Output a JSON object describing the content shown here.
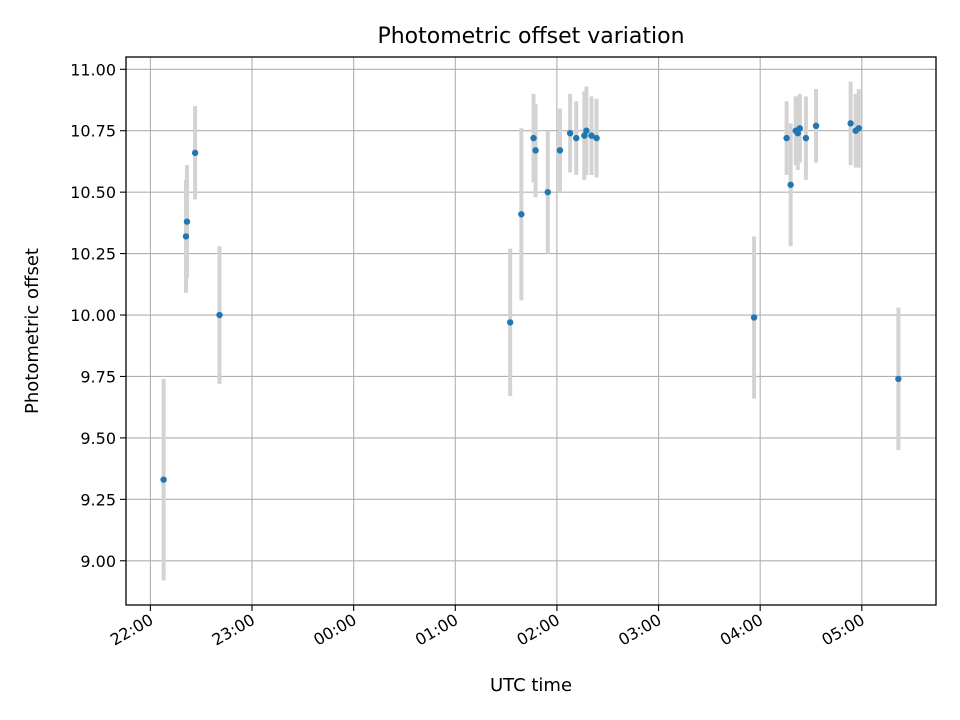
{
  "chart_data": {
    "type": "scatter",
    "title": "Photometric offset variation",
    "xlabel": "UTC time",
    "ylabel": "Photometric offset",
    "grid": true,
    "xlim_hours": [
      21.76,
      29.73
    ],
    "ylim": [
      8.82,
      11.05
    ],
    "x_ticks": [
      {
        "hours": 22,
        "label": "22:00"
      },
      {
        "hours": 23,
        "label": "23:00"
      },
      {
        "hours": 24,
        "label": "00:00"
      },
      {
        "hours": 25,
        "label": "01:00"
      },
      {
        "hours": 26,
        "label": "02:00"
      },
      {
        "hours": 27,
        "label": "03:00"
      },
      {
        "hours": 28,
        "label": "04:00"
      },
      {
        "hours": 29,
        "label": "05:00"
      }
    ],
    "y_ticks": [
      {
        "value": 9.0,
        "label": "9.00"
      },
      {
        "value": 9.25,
        "label": "9.25"
      },
      {
        "value": 9.5,
        "label": "9.50"
      },
      {
        "value": 9.75,
        "label": "9.75"
      },
      {
        "value": 10.0,
        "label": "10.00"
      },
      {
        "value": 10.25,
        "label": "10.25"
      },
      {
        "value": 10.5,
        "label": "10.50"
      },
      {
        "value": 10.75,
        "label": "10.75"
      },
      {
        "value": 11.0,
        "label": "11.00"
      }
    ],
    "colors": {
      "points": "#1f77b4",
      "errorbars": "#d3d3d3",
      "grid": "#b0b0b0",
      "frame": "#000000"
    },
    "series": [
      {
        "name": "offset",
        "points": [
          {
            "t": 22.13,
            "y": 9.33,
            "err": 0.41
          },
          {
            "t": 22.35,
            "y": 10.32,
            "err": 0.23
          },
          {
            "t": 22.36,
            "y": 10.38,
            "err": 0.23
          },
          {
            "t": 22.44,
            "y": 10.66,
            "err": 0.19
          },
          {
            "t": 22.68,
            "y": 10.0,
            "err": 0.28
          },
          {
            "t": 25.54,
            "y": 9.97,
            "err": 0.3
          },
          {
            "t": 25.65,
            "y": 10.41,
            "err": 0.35
          },
          {
            "t": 25.77,
            "y": 10.72,
            "err": 0.18
          },
          {
            "t": 25.79,
            "y": 10.67,
            "err": 0.19
          },
          {
            "t": 25.91,
            "y": 10.5,
            "err": 0.25
          },
          {
            "t": 26.03,
            "y": 10.67,
            "err": 0.17
          },
          {
            "t": 26.13,
            "y": 10.74,
            "err": 0.16
          },
          {
            "t": 26.19,
            "y": 10.72,
            "err": 0.15
          },
          {
            "t": 26.27,
            "y": 10.73,
            "err": 0.18
          },
          {
            "t": 26.29,
            "y": 10.75,
            "err": 0.18
          },
          {
            "t": 26.34,
            "y": 10.73,
            "err": 0.16
          },
          {
            "t": 26.39,
            "y": 10.72,
            "err": 0.16
          },
          {
            "t": 27.94,
            "y": 9.99,
            "err": 0.33
          },
          {
            "t": 28.26,
            "y": 10.72,
            "err": 0.15
          },
          {
            "t": 28.3,
            "y": 10.53,
            "err": 0.25
          },
          {
            "t": 28.35,
            "y": 10.75,
            "err": 0.14
          },
          {
            "t": 28.37,
            "y": 10.74,
            "err": 0.15
          },
          {
            "t": 28.39,
            "y": 10.76,
            "err": 0.14
          },
          {
            "t": 28.45,
            "y": 10.72,
            "err": 0.17
          },
          {
            "t": 28.55,
            "y": 10.77,
            "err": 0.15
          },
          {
            "t": 28.89,
            "y": 10.78,
            "err": 0.17
          },
          {
            "t": 28.94,
            "y": 10.75,
            "err": 0.15
          },
          {
            "t": 28.97,
            "y": 10.76,
            "err": 0.16
          },
          {
            "t": 29.36,
            "y": 9.74,
            "err": 0.29
          }
        ]
      }
    ]
  }
}
